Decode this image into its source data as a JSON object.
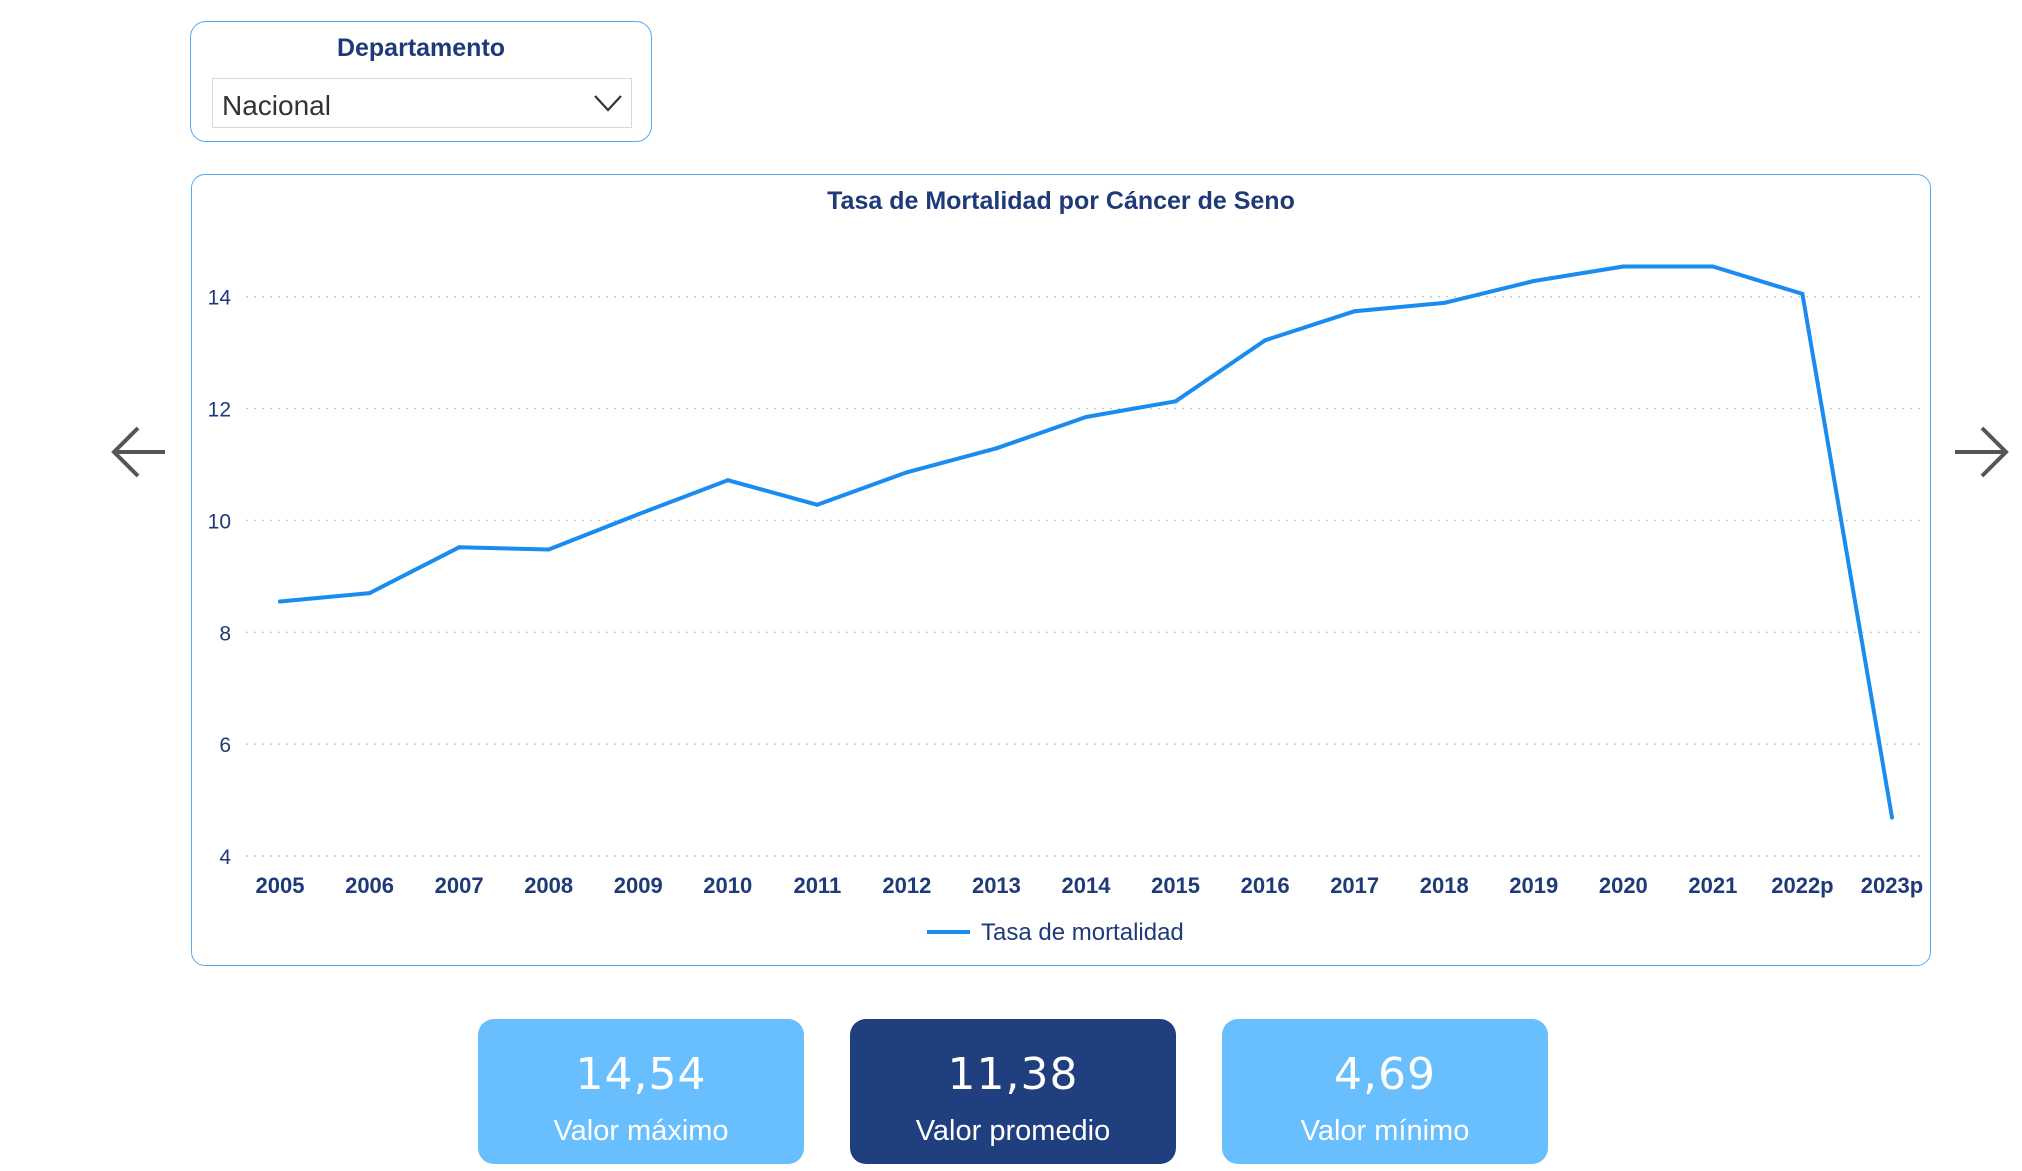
{
  "filter": {
    "title": "Departamento",
    "selected": "Nacional"
  },
  "nav": {
    "prev_icon": "arrow-left-icon",
    "next_icon": "arrow-right-icon"
  },
  "chart_data": {
    "type": "line",
    "title": "Tasa de Mortalidad por Cáncer de Seno",
    "categories": [
      "2005",
      "2006",
      "2007",
      "2008",
      "2009",
      "2010",
      "2011",
      "2012",
      "2013",
      "2014",
      "2015",
      "2016",
      "2017",
      "2018",
      "2019",
      "2020",
      "2021",
      "2022p",
      "2023p"
    ],
    "series": [
      {
        "name": "Tasa de mortalidad",
        "color": "#1a8cf0",
        "values": [
          8.55,
          8.7,
          9.52,
          9.48,
          10.11,
          10.72,
          10.28,
          10.86,
          11.29,
          11.85,
          12.13,
          13.22,
          13.74,
          13.89,
          14.28,
          14.54,
          14.54,
          14.05,
          4.69
        ]
      }
    ],
    "yticks": [
      4,
      6,
      8,
      10,
      12,
      14
    ],
    "ylim": [
      4,
      15.3
    ],
    "grid": true,
    "legend_position": "bottom-center"
  },
  "kpis": {
    "max": {
      "value": "14,54",
      "label": "Valor máximo"
    },
    "avg": {
      "value": "11,38",
      "label": "Valor promedio"
    },
    "min": {
      "value": "4,69",
      "label": "Valor mínimo"
    }
  },
  "colors": {
    "navy": "#1e3a78",
    "line": "#1a8cf0",
    "light_blue": "#69bffd",
    "dark_blue": "#1f3f7e",
    "border": "#5aaaf0"
  }
}
